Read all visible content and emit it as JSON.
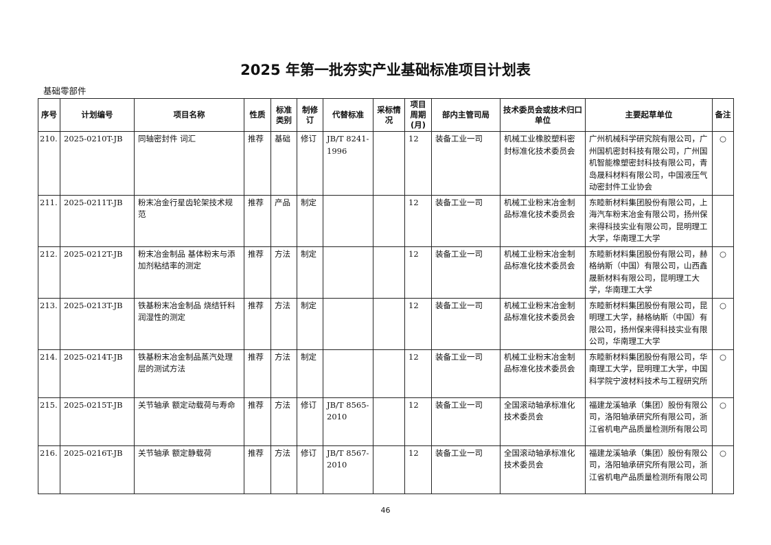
{
  "title": "2025 年第一批夯实产业基础标准项目计划表",
  "section": "基础零部件",
  "headers": [
    "序号",
    "计划编号",
    "项目名称",
    "性质",
    "标准类别",
    "制修订",
    "代替标准",
    "采标情况",
    "项目周期(月)",
    "部内主管司局",
    "技术委员会或技术归口单位",
    "主要起草单位",
    "备注"
  ],
  "rows": [
    {
      "no": "210.",
      "code": "2025-0210T-JB",
      "name": "同轴密封件 词汇",
      "nature": "推荐",
      "category": "基础",
      "type": "修订",
      "replace": "JB/T 8241-1996",
      "adopt": "",
      "period": "12",
      "dept": "装备工业一司",
      "committee": "机械工业橡胶塑料密封标准化技术委员会",
      "drafters": "广州机械科学研究院有限公司，广州国机密封科技有限公司，广州国机智能橡塑密封科技有限公司，青岛晟科材料有限公司，中国液压气动密封件工业协会",
      "note": "○"
    },
    {
      "no": "211.",
      "code": "2025-0211T-JB",
      "name": "粉末冶金行星齿轮架技术规范",
      "nature": "推荐",
      "category": "产品",
      "type": "制定",
      "replace": "",
      "adopt": "",
      "period": "12",
      "dept": "装备工业一司",
      "committee": "机械工业粉末冶金制品标准化技术委员会",
      "drafters": "东睦新材料集团股份有限公司，上海汽车粉末冶金有限公司，扬州保来得科技实业有限公司，昆明理工大学，华南理工大学",
      "note": ""
    },
    {
      "no": "212.",
      "code": "2025-0212T-JB",
      "name": "粉末冶金制品 基体粉末与添加剂粘结率的测定",
      "nature": "推荐",
      "category": "方法",
      "type": "制定",
      "replace": "",
      "adopt": "",
      "period": "12",
      "dept": "装备工业一司",
      "committee": "机械工业粉末冶金制品标准化技术委员会",
      "drafters": "东睦新材料集团股份有限公司，赫格纳斯（中国）有限公司，山西鑫晟新材料有限公司，昆明理工大学，华南理工大学",
      "note": "○"
    },
    {
      "no": "213.",
      "code": "2025-0213T-JB",
      "name": "铁基粉末冶金制品 烧结钎料润湿性的测定",
      "nature": "推荐",
      "category": "方法",
      "type": "制定",
      "replace": "",
      "adopt": "",
      "period": "12",
      "dept": "装备工业一司",
      "committee": "机械工业粉末冶金制品标准化技术委员会",
      "drafters": "东睦新材料集团股份有限公司，昆明理工大学，赫格纳斯（中国）有限公司，扬州保来得科技实业有限公司，华南理工大学",
      "note": "○"
    },
    {
      "no": "214.",
      "code": "2025-0214T-JB",
      "name": "铁基粉末冶金制品蒸汽处理层的测试方法",
      "nature": "推荐",
      "category": "方法",
      "type": "制定",
      "replace": "",
      "adopt": "",
      "period": "12",
      "dept": "装备工业一司",
      "committee": "机械工业粉末冶金制品标准化技术委员会",
      "drafters": "东睦新材料集团股份有限公司，华南理工大学，昆明理工大学，中国科学院宁波材料技术与工程研究所",
      "note": "○"
    },
    {
      "no": "215.",
      "code": "2025-0215T-JB",
      "name": "关节轴承 额定动载荷与寿命",
      "nature": "推荐",
      "category": "方法",
      "type": "修订",
      "replace": "JB/T 8565-2010",
      "adopt": "",
      "period": "12",
      "dept": "装备工业一司",
      "committee": "全国滚动轴承标准化技术委员会",
      "drafters": "福建龙溪轴承（集团）股份有限公司，洛阳轴承研究所有限公司，浙江省机电产品质量检测所有限公司",
      "note": "○"
    },
    {
      "no": "216.",
      "code": "2025-0216T-JB",
      "name": "关节轴承 额定静载荷",
      "nature": "推荐",
      "category": "方法",
      "type": "修订",
      "replace": "JB/T 8567-2010",
      "adopt": "",
      "period": "12",
      "dept": "装备工业一司",
      "committee": "全国滚动轴承标准化技术委员会",
      "drafters": "福建龙溪轴承（集团）股份有限公司，洛阳轴承研究所有限公司，浙江省机电产品质量检测所有限公司",
      "note": "○"
    }
  ],
  "page_number": "46"
}
